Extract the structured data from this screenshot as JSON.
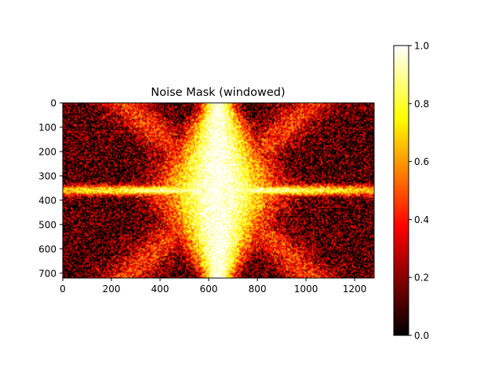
{
  "chart_data": {
    "type": "heatmap",
    "title": "Noise Mask (windowed)",
    "xlabel": "",
    "ylabel": "",
    "image_width": 1280,
    "image_height": 720,
    "xlim": [
      0,
      1280
    ],
    "ylim": [
      720,
      0
    ],
    "x_ticks": [
      0,
      200,
      400,
      600,
      800,
      1000,
      1200
    ],
    "y_ticks": [
      0,
      100,
      200,
      300,
      400,
      500,
      600,
      700
    ],
    "colormap": "hot",
    "colorbar": {
      "range": [
        0.0,
        1.0
      ],
      "ticks": [
        "0.0",
        "0.2",
        "0.4",
        "0.6",
        "0.8",
        "1.0"
      ],
      "stops": [
        "#000000",
        "#ff0000",
        "#ffff00",
        "#ffffff"
      ]
    },
    "pattern": {
      "description_values": {
        "center_x": 640,
        "center_y": 360,
        "vertical_band_peak": 1.0,
        "horizontal_band_peak": 0.95,
        "corner_level": 0.1
      }
    },
    "grid": false,
    "legend": "none"
  }
}
